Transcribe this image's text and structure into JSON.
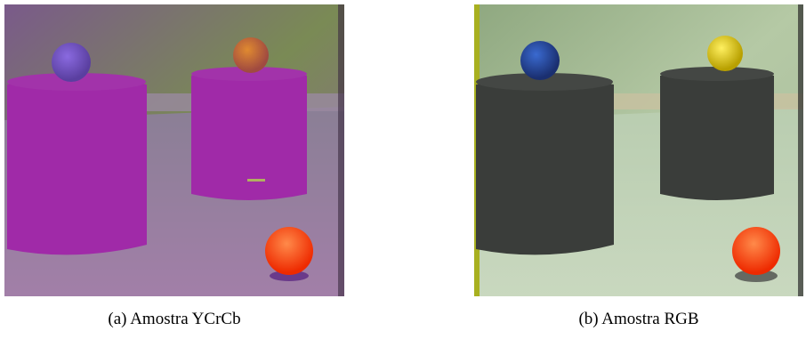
{
  "subfigures": [
    {
      "caption": "(a) Amostra YCrCb"
    },
    {
      "caption": "(b) Amostra RGB"
    }
  ]
}
